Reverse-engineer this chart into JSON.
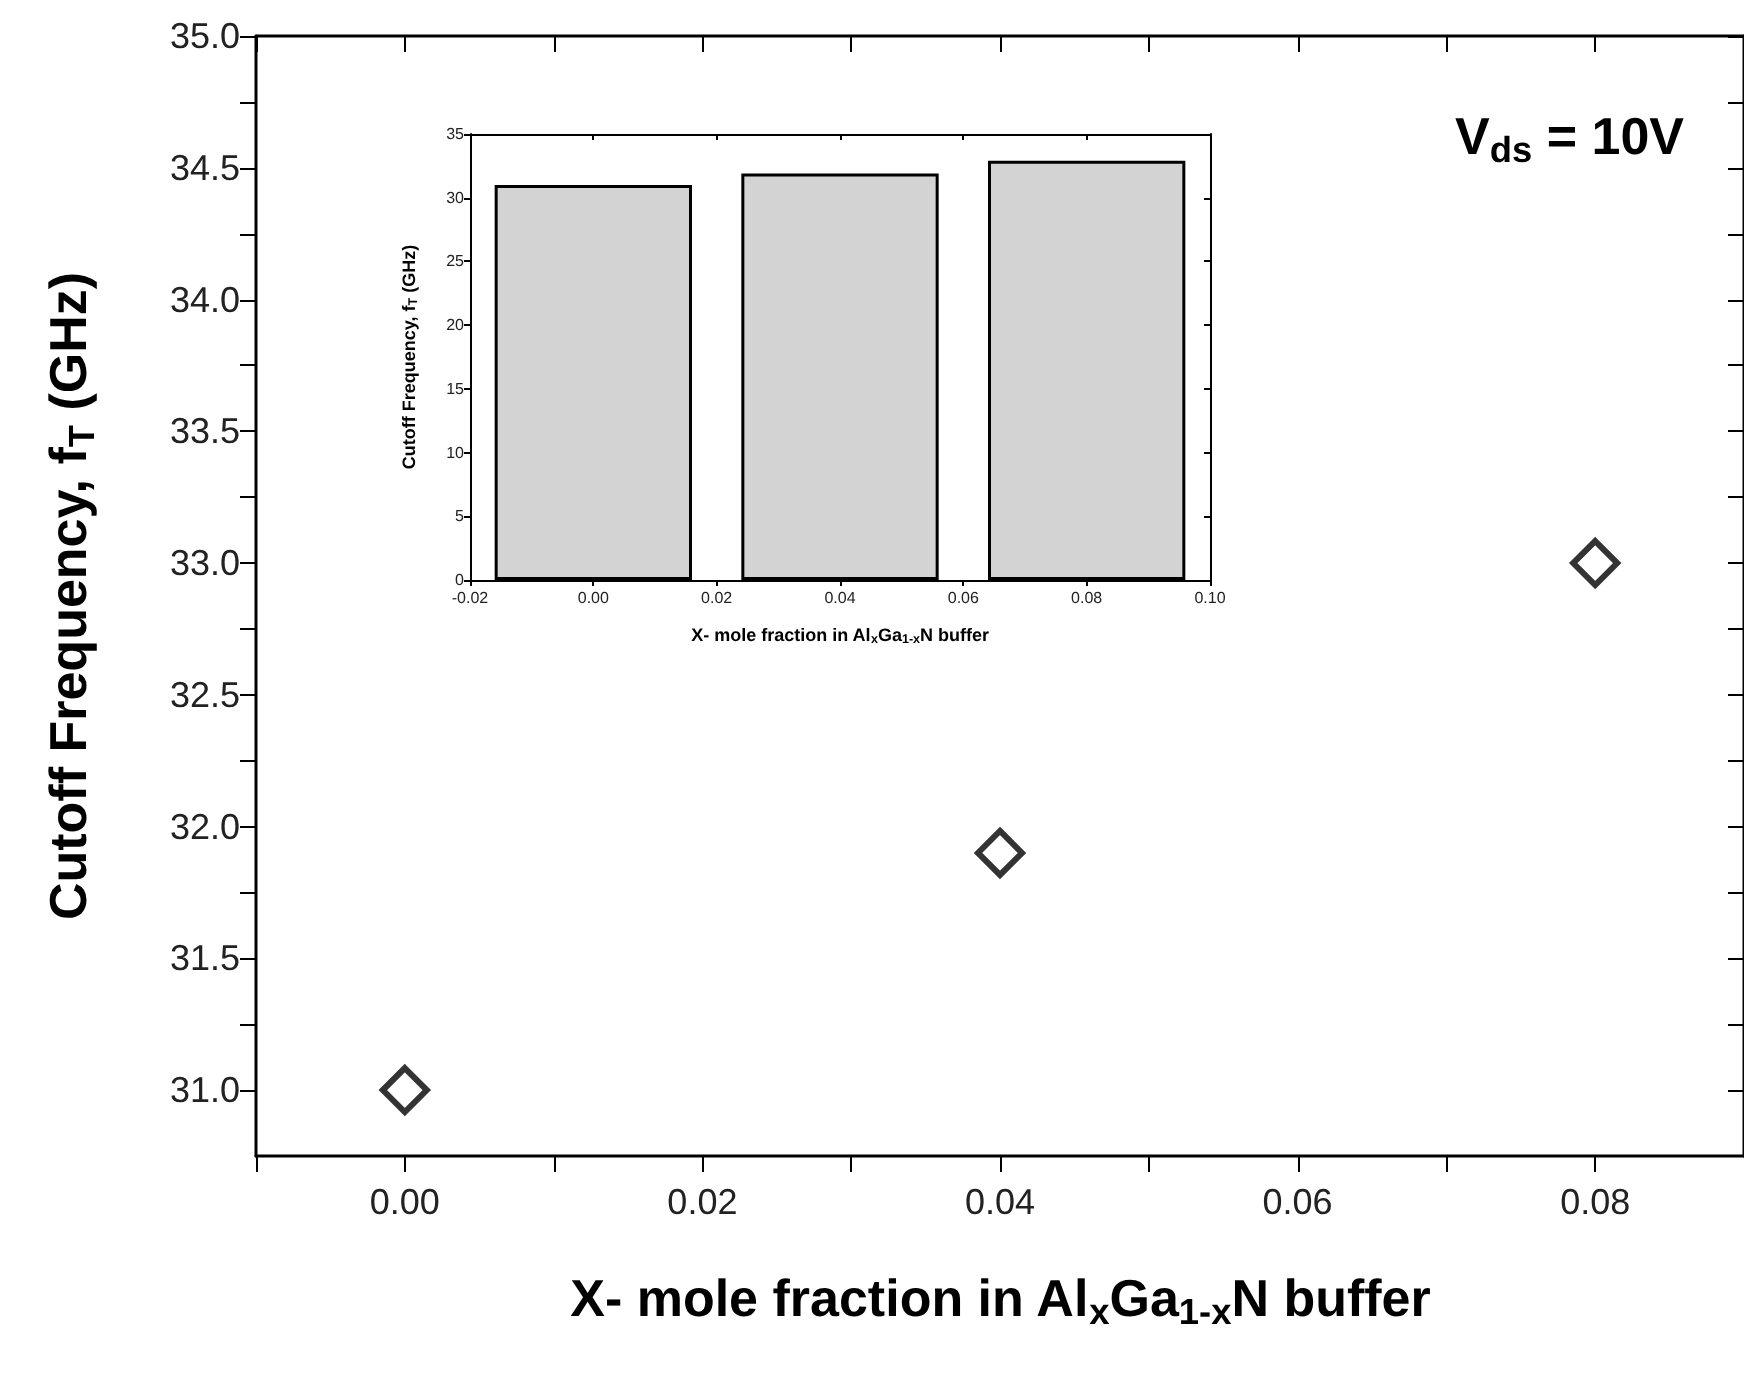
{
  "chart_data": [
    {
      "type": "scatter",
      "xlabel": "X- mole fraction in Al$_{x}$Ga$_{1-x}$N buffer",
      "ylabel": "Cutoff Frequency, f$_{T}$ (GHz)",
      "x": [
        0,
        0.04,
        0.08
      ],
      "values": [
        31.0,
        31.9,
        33.0
      ],
      "color": "#000000",
      "marker": "diamond",
      "xlim": [
        -0.01,
        0.09
      ],
      "xticks": [
        {
          "value": -0.01,
          "label": null
        },
        {
          "value": 0,
          "label": "0.00"
        },
        {
          "value": 0.01,
          "label": null
        },
        {
          "value": 0.02,
          "label": "0.02"
        },
        {
          "value": 0.03,
          "label": null
        },
        {
          "value": 0.04,
          "label": "0.04"
        },
        {
          "value": 0.05,
          "label": null
        },
        {
          "value": 0.06,
          "label": "0.06"
        },
        {
          "value": 0.07,
          "label": null
        },
        {
          "value": 0.08,
          "label": "0.08"
        }
      ],
      "ylim": [
        30.75,
        35
      ],
      "yticks": [
        {
          "value": 31,
          "label": "31.0"
        },
        {
          "value": 31.25,
          "label": null
        },
        {
          "value": 31.5,
          "label": "31.5"
        },
        {
          "value": 31.75,
          "label": null
        },
        {
          "value": 32,
          "label": "32.0"
        },
        {
          "value": 32.25,
          "label": null
        },
        {
          "value": 32.5,
          "label": "32.5"
        },
        {
          "value": 32.75,
          "label": null
        },
        {
          "value": 33,
          "label": "33.0"
        },
        {
          "value": 33.25,
          "label": null
        },
        {
          "value": 33.5,
          "label": "33.5"
        },
        {
          "value": 33.75,
          "label": null
        },
        {
          "value": 34,
          "label": "34.0"
        },
        {
          "value": 34.25,
          "label": null
        },
        {
          "value": 34.5,
          "label": "34.5"
        },
        {
          "value": 34.75,
          "label": null
        },
        {
          "value": 35,
          "label": "35.0"
        }
      ],
      "annotations": [
        "V$_{ds}$ = 10V"
      ]
    },
    {
      "type": "bar",
      "xlabel": "X- mole fraction in Al$_{x}$Ga$_{1-x}$N buffer",
      "ylabel": "Cutoff Frequency, f$_{T}$ (GHz)",
      "x": [
        0,
        0.04,
        0.08
      ],
      "values": [
        31.0,
        31.9,
        32.9
      ],
      "color": "#d3d3d3",
      "xlim": [
        -0.02,
        0.1
      ],
      "xticks": [
        {
          "value": -0.02,
          "label": "-0.02"
        },
        {
          "value": 0,
          "label": "0.00"
        },
        {
          "value": 0.02,
          "label": "0.02"
        },
        {
          "value": 0.04,
          "label": "0.04"
        },
        {
          "value": 0.06,
          "label": "0.06"
        },
        {
          "value": 0.08,
          "label": "0.08"
        },
        {
          "value": 0.1,
          "label": "0.10"
        }
      ],
      "ylim": [
        0,
        35
      ],
      "yticks": [
        0,
        5,
        10,
        15,
        20,
        25,
        30,
        35
      ]
    }
  ]
}
